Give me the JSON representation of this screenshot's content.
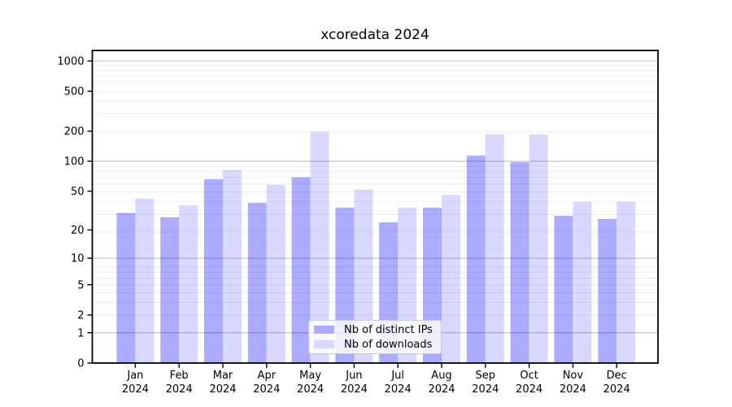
{
  "title": "xcoredata 2024",
  "legend": {
    "items": [
      {
        "label": "Nb of distinct IPs",
        "color": "#ababff"
      },
      {
        "label": "Nb of downloads",
        "color": "#d9d9ff"
      }
    ]
  },
  "chart_data": {
    "type": "bar",
    "title": "xcoredata 2024",
    "categories": [
      "Jan 2024",
      "Feb 2024",
      "Mar 2024",
      "Apr 2024",
      "May 2024",
      "Jun 2024",
      "Jul 2024",
      "Aug 2024",
      "Sep 2024",
      "Oct 2024",
      "Nov 2024",
      "Dec 2024"
    ],
    "series": [
      {
        "name": "Nb of distinct IPs",
        "color": "#ababff",
        "values": [
          30,
          27,
          66,
          38,
          69,
          34,
          24,
          34,
          114,
          98,
          28,
          26
        ]
      },
      {
        "name": "Nb of downloads",
        "color": "#d9d9ff",
        "values": [
          42,
          36,
          82,
          58,
          197,
          52,
          34,
          46,
          186,
          186,
          39,
          39
        ]
      }
    ],
    "xlabel": "",
    "ylabel": "",
    "yscale": "log(value+1)",
    "yticks": [
      0,
      1,
      2,
      5,
      10,
      20,
      50,
      100,
      200,
      500,
      1000
    ],
    "major_gridline_values": [
      1,
      10,
      100,
      1000
    ],
    "ylim": [
      0,
      1270
    ],
    "grid": true,
    "legend_position": "lower center inside plot",
    "colors": {
      "axis": "#000000",
      "major_grid": "#c8c8c8",
      "minor_grid": "#efefef"
    }
  }
}
